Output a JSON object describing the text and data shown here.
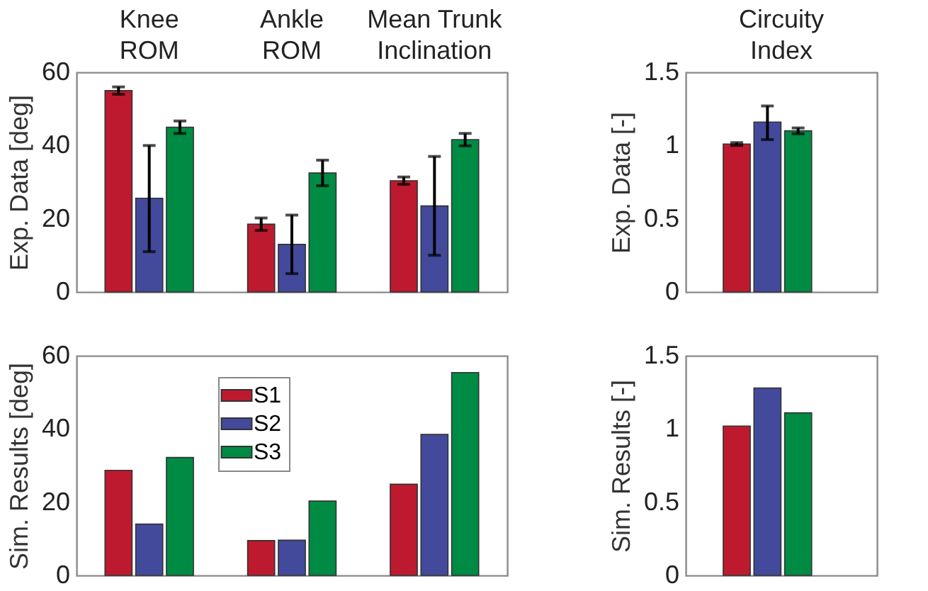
{
  "chart_data": [
    {
      "type": "bar",
      "ylabel": "Exp. Data [deg]",
      "categories": [
        "Knee ROM",
        "Ankle ROM",
        "Mean Trunk Inclination"
      ],
      "ylim": [
        0,
        60
      ],
      "yticks": [
        0,
        20,
        40,
        60
      ],
      "grid": false,
      "legend": false,
      "series": [
        {
          "color": "#be1a2f",
          "values": [
            55,
            18.5,
            30.4
          ],
          "errors": [
            1,
            1.7,
            1
          ]
        },
        {
          "color": "#434a9b",
          "values": [
            25.6,
            13,
            23.5
          ],
          "errors": [
            [
              11,
              40
            ],
            [
              5,
              21
            ],
            [
              10,
              37
            ]
          ]
        },
        {
          "color": "#008b44",
          "values": [
            45,
            32.5,
            41.6
          ],
          "errors": [
            1.7,
            3.5,
            1.7
          ]
        }
      ]
    },
    {
      "type": "bar",
      "ylabel": "Exp. Data [-]",
      "categories": [
        "Circuity Index"
      ],
      "ylim": [
        0,
        1.5
      ],
      "yticks": [
        0,
        0.5,
        1,
        1.5
      ],
      "grid": false,
      "legend": false,
      "series": [
        {
          "color": "#be1a2f",
          "values": [
            1.01
          ],
          "errors": [
            0.01
          ]
        },
        {
          "color": "#434a9b",
          "values": [
            1.16
          ],
          "errors": [
            [
              1.04,
              1.27
            ]
          ]
        },
        {
          "color": "#008b44",
          "values": [
            1.1
          ],
          "errors": [
            [
              1.08,
              1.12
            ]
          ]
        }
      ]
    },
    {
      "type": "bar",
      "ylabel": "Sim. Results [deg]",
      "categories": [
        null,
        null,
        null
      ],
      "ylim": [
        0,
        60
      ],
      "yticks": [
        0,
        20,
        40,
        60
      ],
      "grid": false,
      "legend": "top",
      "tick_labels": "y",
      "series": [
        {
          "name": "S1",
          "color": "#be1a2f",
          "values": [
            28.7,
            9.5,
            24.9
          ]
        },
        {
          "name": "S2",
          "color": "#434a9b",
          "values": [
            14,
            9.6,
            38.5
          ]
        },
        {
          "name": "S3",
          "color": "#008b44",
          "values": [
            32.2,
            20.3,
            55.4
          ]
        }
      ]
    },
    {
      "type": "bar",
      "ylabel": "Sim. Results [-]",
      "categories": [
        null
      ],
      "ylim": [
        0,
        1.5
      ],
      "yticks": [
        0,
        0.5,
        1,
        1.5
      ],
      "grid": false,
      "legend": false,
      "tick_labels": "y",
      "series": [
        {
          "color": "#be1a2f",
          "values": [
            1.02
          ]
        },
        {
          "color": "#434a9b",
          "values": [
            1.28
          ]
        },
        {
          "color": "#008b44",
          "values": [
            1.11
          ]
        }
      ]
    }
  ]
}
